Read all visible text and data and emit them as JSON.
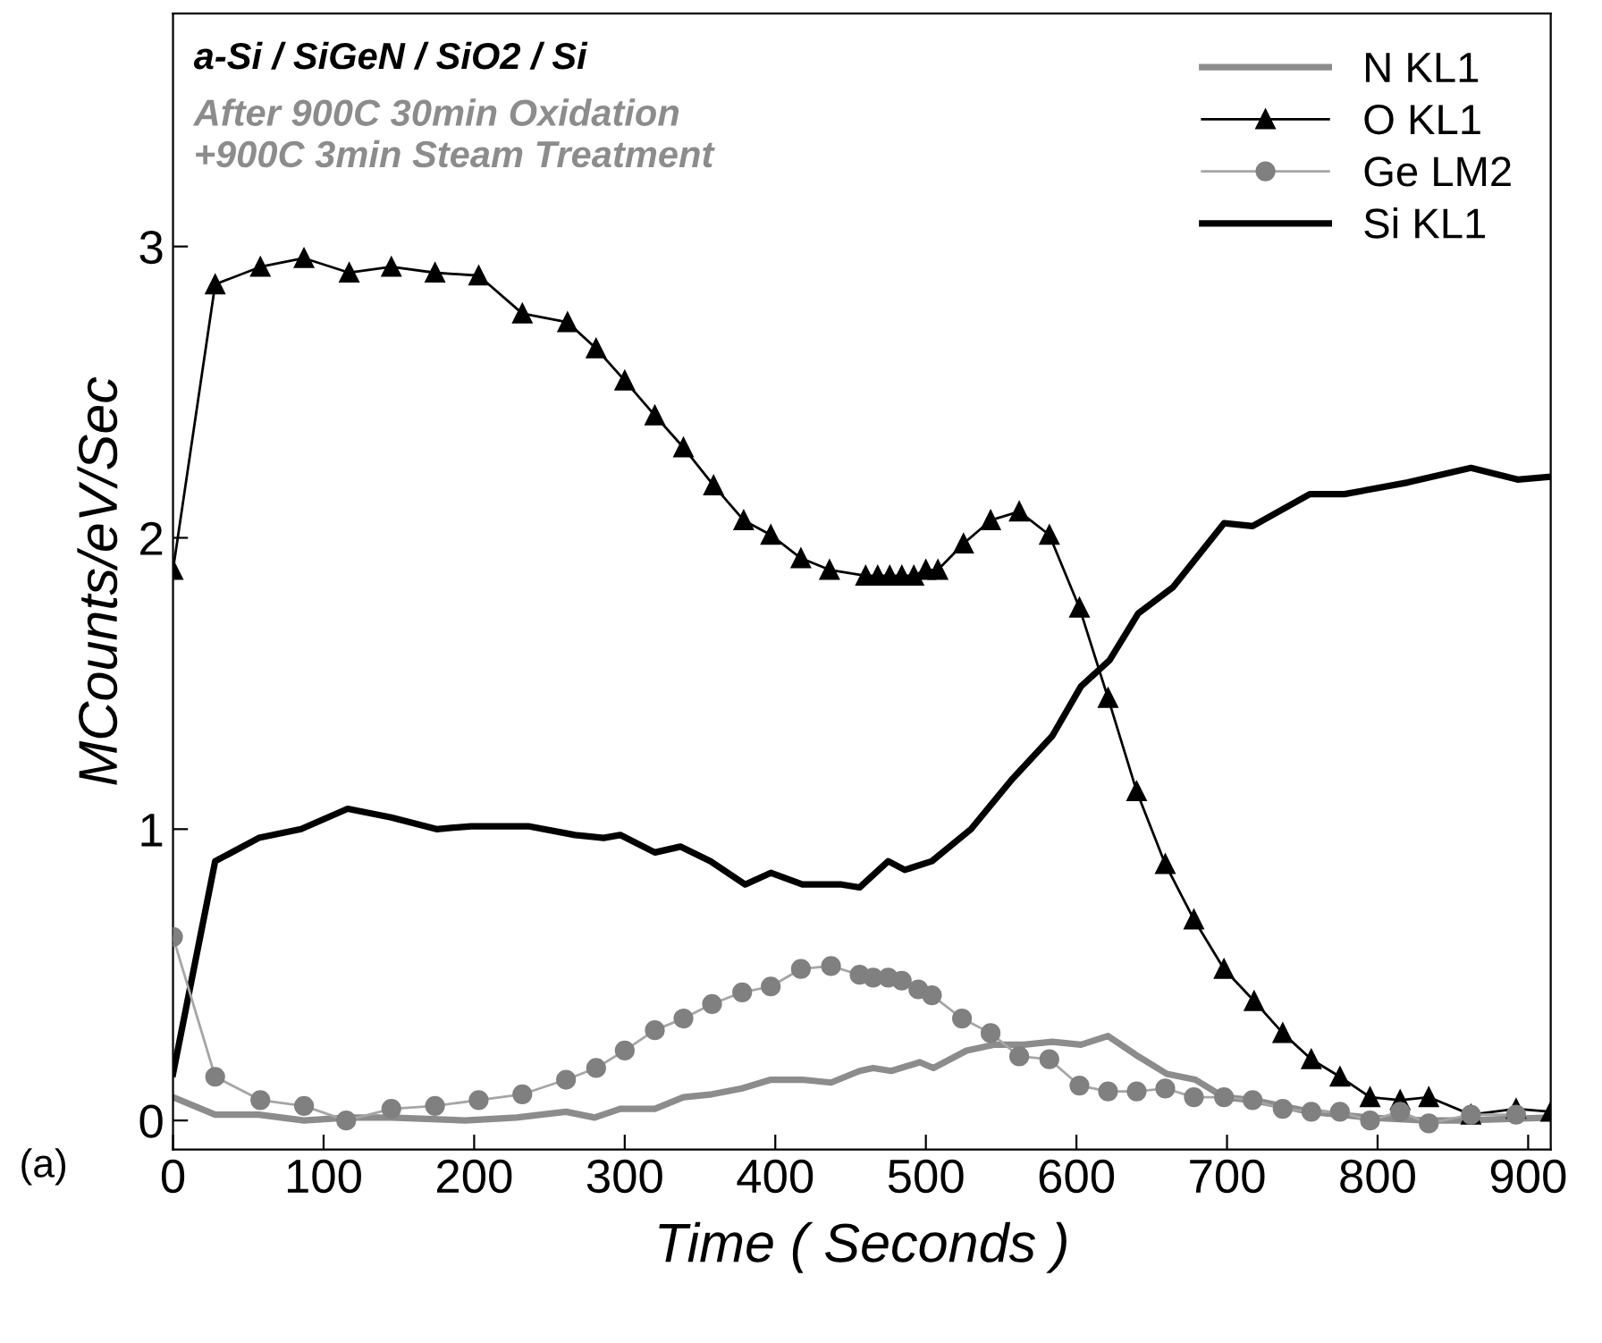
{
  "chart_data": {
    "type": "line",
    "title": "a-Si / SiGeN / SiO2 / Si",
    "subtitle": "After 900C 30min Oxidation\n+900C 3min Steam Treatment",
    "xlabel": "Time ( Seconds )",
    "ylabel": "MCounts/eV/Sec",
    "annotations": [
      "(a)"
    ],
    "xlim": [
      0,
      915
    ],
    "ylim": [
      -0.1,
      3.8
    ],
    "xticks": [
      0,
      100,
      200,
      300,
      400,
      500,
      600,
      700,
      800,
      900
    ],
    "yticks": [
      0,
      1,
      2,
      3
    ],
    "grid": false,
    "legend": "top right",
    "series": [
      {
        "name": "N KL1",
        "color": "#8c8c8c",
        "marker": "none",
        "x": [
          0,
          28,
          57,
          87,
          116,
          145,
          194,
          228,
          261,
          280,
          297,
          320,
          339,
          358,
          378,
          397,
          418,
          437,
          456,
          465,
          477,
          496,
          505,
          527,
          545,
          565,
          584,
          603,
          621,
          641,
          660,
          679,
          698,
          717,
          755,
          794,
          832,
          855,
          915
        ],
        "values": [
          0.08,
          0.02,
          0.02,
          0.0,
          0.01,
          0.01,
          0.0,
          0.01,
          0.03,
          0.01,
          0.04,
          0.04,
          0.08,
          0.09,
          0.11,
          0.14,
          0.14,
          0.13,
          0.17,
          0.18,
          0.17,
          0.2,
          0.18,
          0.24,
          0.26,
          0.26,
          0.27,
          0.26,
          0.29,
          0.22,
          0.16,
          0.14,
          0.08,
          0.07,
          0.03,
          0.01,
          0.0,
          0.0,
          0.01
        ]
      },
      {
        "name": "O KL1",
        "color": "#000000",
        "marker": "triangle",
        "x": [
          0,
          28,
          58,
          87,
          117,
          145,
          174,
          203,
          232,
          262,
          281,
          300,
          320,
          339,
          359,
          379,
          397,
          417,
          436,
          460,
          468,
          476,
          484,
          492,
          500,
          508,
          525,
          543,
          562,
          582,
          602,
          621,
          640,
          659,
          678,
          698,
          718,
          737,
          756,
          775,
          795,
          815,
          834,
          862,
          892,
          915
        ],
        "values": [
          1.89,
          2.87,
          2.93,
          2.96,
          2.91,
          2.93,
          2.91,
          2.9,
          2.77,
          2.74,
          2.65,
          2.54,
          2.42,
          2.31,
          2.18,
          2.06,
          2.01,
          1.93,
          1.89,
          1.87,
          1.87,
          1.87,
          1.87,
          1.87,
          1.89,
          1.89,
          1.98,
          2.06,
          2.09,
          2.01,
          1.76,
          1.45,
          1.13,
          0.88,
          0.69,
          0.52,
          0.41,
          0.3,
          0.21,
          0.15,
          0.08,
          0.07,
          0.08,
          0.02,
          0.04,
          0.03
        ]
      },
      {
        "name": "Ge LM2",
        "color": "#808080",
        "marker": "circle",
        "x": [
          0,
          28,
          58,
          87,
          115,
          145,
          174,
          203,
          232,
          261,
          281,
          300,
          320,
          339,
          358,
          378,
          397,
          417,
          437,
          456,
          465,
          475,
          484,
          495,
          504,
          524,
          543,
          562,
          582,
          602,
          621,
          640,
          659,
          678,
          698,
          717,
          737,
          756,
          775,
          795,
          815,
          834,
          862,
          892
        ],
        "values": [
          0.63,
          0.15,
          0.07,
          0.05,
          0.0,
          0.04,
          0.05,
          0.07,
          0.09,
          0.14,
          0.18,
          0.24,
          0.31,
          0.35,
          0.4,
          0.44,
          0.46,
          0.52,
          0.53,
          0.5,
          0.49,
          0.49,
          0.48,
          0.45,
          0.43,
          0.35,
          0.3,
          0.22,
          0.21,
          0.12,
          0.1,
          0.1,
          0.11,
          0.08,
          0.08,
          0.07,
          0.04,
          0.03,
          0.03,
          0.0,
          0.03,
          -0.01,
          0.02,
          0.02
        ]
      },
      {
        "name": "Si KL1",
        "color": "#000000",
        "marker": "none",
        "x": [
          0,
          28,
          57,
          85,
          116,
          145,
          175,
          198,
          236,
          267,
          286,
          297,
          320,
          337,
          357,
          380,
          397,
          418,
          444,
          456,
          475,
          486,
          504,
          530,
          557,
          584,
          603,
          622,
          641,
          664,
          698,
          717,
          755,
          778,
          820,
          862,
          893,
          915
        ],
        "values": [
          0.16,
          0.89,
          0.97,
          1.0,
          1.07,
          1.04,
          1.0,
          1.01,
          1.01,
          0.98,
          0.97,
          0.98,
          0.92,
          0.94,
          0.89,
          0.81,
          0.85,
          0.81,
          0.81,
          0.8,
          0.89,
          0.86,
          0.89,
          1.0,
          1.17,
          1.32,
          1.49,
          1.58,
          1.74,
          1.83,
          2.05,
          2.04,
          2.15,
          2.15,
          2.19,
          2.24,
          2.2,
          2.21
        ]
      }
    ]
  }
}
